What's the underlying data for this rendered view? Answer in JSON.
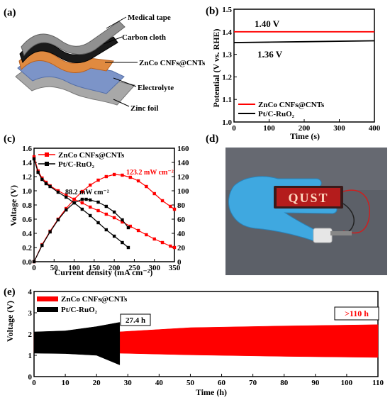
{
  "panels": {
    "a": {
      "label": "(a)",
      "layers": [
        "Medical tape",
        "Carbon cloth",
        "ZnCo CNFs@CNTs",
        "Electrolyte",
        "Zinc foil"
      ]
    },
    "d": {
      "label": "(d)",
      "led_text": "QUST"
    }
  },
  "colors": {
    "red": "#ff0000",
    "black": "#000000",
    "led_background": "#b41c1c",
    "glove": "#3fa8e0"
  },
  "chart_data": [
    {
      "id": "b",
      "label": "(b)",
      "type": "line",
      "xlabel": "Time (s)",
      "ylabel": "Potential (V vs. RHE)",
      "xlim": [
        0,
        400
      ],
      "ylim": [
        1.0,
        1.5
      ],
      "xticks": [
        0,
        100,
        200,
        300,
        400
      ],
      "yticks": [
        1.0,
        1.1,
        1.2,
        1.3,
        1.4,
        1.5
      ],
      "series": [
        {
          "name": "ZnCo CNFs@CNTs",
          "color": "#ff0000",
          "x": [
            0,
            100,
            200,
            300,
            400
          ],
          "y": [
            1.4,
            1.4,
            1.4,
            1.4,
            1.4
          ]
        },
        {
          "name": "Pt/C-RuO₂",
          "color": "#000000",
          "x": [
            0,
            100,
            200,
            300,
            400
          ],
          "y": [
            1.352,
            1.354,
            1.356,
            1.358,
            1.36
          ]
        }
      ],
      "annotations": [
        "1.40 V",
        "1.36 V"
      ],
      "legend": "bottom-left"
    },
    {
      "id": "c",
      "label": "(c)",
      "type": "line",
      "xlabel": "Current density (mA cm⁻²)",
      "ylabel": "Voltage (V)",
      "y2label": "Power density (mW cm⁻²)",
      "xlim": [
        0,
        350
      ],
      "ylim": [
        0,
        1.6
      ],
      "y2lim": [
        0,
        160
      ],
      "xticks": [
        0,
        50,
        100,
        150,
        200,
        250,
        300,
        350
      ],
      "yticks": [
        0.0,
        0.2,
        0.4,
        0.6,
        0.8,
        1.0,
        1.2,
        1.4,
        1.6
      ],
      "y2ticks": [
        0,
        20,
        40,
        60,
        80,
        100,
        120,
        140,
        160
      ],
      "series": [
        {
          "name": "ZnCo CNFs@CNTs",
          "color": "#ff0000",
          "marker": "square",
          "axis": "left",
          "x": [
            0,
            10,
            20,
            30,
            40,
            60,
            80,
            100,
            120,
            140,
            160,
            180,
            200,
            220,
            240,
            260,
            280,
            300,
            320,
            340,
            350
          ],
          "y": [
            1.48,
            1.28,
            1.18,
            1.12,
            1.07,
            1.0,
            0.94,
            0.88,
            0.83,
            0.77,
            0.72,
            0.67,
            0.62,
            0.56,
            0.5,
            0.44,
            0.38,
            0.32,
            0.27,
            0.22,
            0.2
          ]
        },
        {
          "name": "ZnCo CNFs@CNTs power",
          "color": "#ff0000",
          "marker": "square",
          "axis": "right",
          "x": [
            0,
            20,
            40,
            60,
            80,
            100,
            120,
            140,
            160,
            180,
            200,
            220,
            240,
            260,
            280,
            300,
            320,
            340,
            350
          ],
          "y": [
            0,
            24,
            43,
            60,
            75,
            88,
            99,
            108,
            115,
            120,
            123,
            122,
            119,
            114,
            106,
            96,
            86,
            78,
            74
          ]
        },
        {
          "name": "Pt/C-RuO₂",
          "color": "#000000",
          "marker": "square",
          "axis": "left",
          "x": [
            0,
            10,
            20,
            30,
            40,
            60,
            80,
            100,
            120,
            140,
            160,
            180,
            200,
            220,
            235
          ],
          "y": [
            1.45,
            1.26,
            1.16,
            1.1,
            1.06,
            0.98,
            0.91,
            0.83,
            0.74,
            0.65,
            0.55,
            0.45,
            0.36,
            0.27,
            0.2
          ]
        },
        {
          "name": "Pt/C-RuO₂ power",
          "color": "#000000",
          "marker": "square",
          "axis": "right",
          "x": [
            0,
            20,
            40,
            60,
            80,
            100,
            120,
            130,
            140,
            160,
            180,
            200,
            220,
            235
          ],
          "y": [
            0,
            23,
            42,
            59,
            73,
            83,
            88,
            88,
            87,
            84,
            78,
            70,
            59,
            48
          ]
        }
      ],
      "annotations": [
        "123.2 mW cm⁻²",
        "88.2 mW cm⁻²"
      ],
      "legend": "top-left"
    },
    {
      "id": "e",
      "label": "(e)",
      "type": "line",
      "xlabel": "Time (h)",
      "ylabel": "Voltage (V)",
      "xlim": [
        0,
        110
      ],
      "ylim": [
        0,
        4
      ],
      "xticks": [
        0,
        10,
        20,
        30,
        40,
        50,
        60,
        70,
        80,
        90,
        100,
        110
      ],
      "yticks": [
        0,
        1,
        2,
        3,
        4
      ],
      "series": [
        {
          "name": "ZnCo CNFs@CNTs",
          "color": "#ff0000",
          "x": [
            0,
            27,
            50,
            80,
            110
          ],
          "upper": [
            2.08,
            2.1,
            2.3,
            2.38,
            2.44
          ],
          "lower": [
            1.12,
            1.1,
            1.02,
            0.95,
            0.9
          ]
        },
        {
          "name": "Pt/C-RuO₂",
          "color": "#000000",
          "x": [
            0,
            10,
            20,
            27.4
          ],
          "upper": [
            2.1,
            2.15,
            2.35,
            2.55
          ],
          "lower": [
            1.1,
            1.08,
            1.0,
            0.55
          ]
        }
      ],
      "annotations": [
        "27.4 h",
        ">110 h"
      ],
      "legend": "top-left"
    }
  ]
}
